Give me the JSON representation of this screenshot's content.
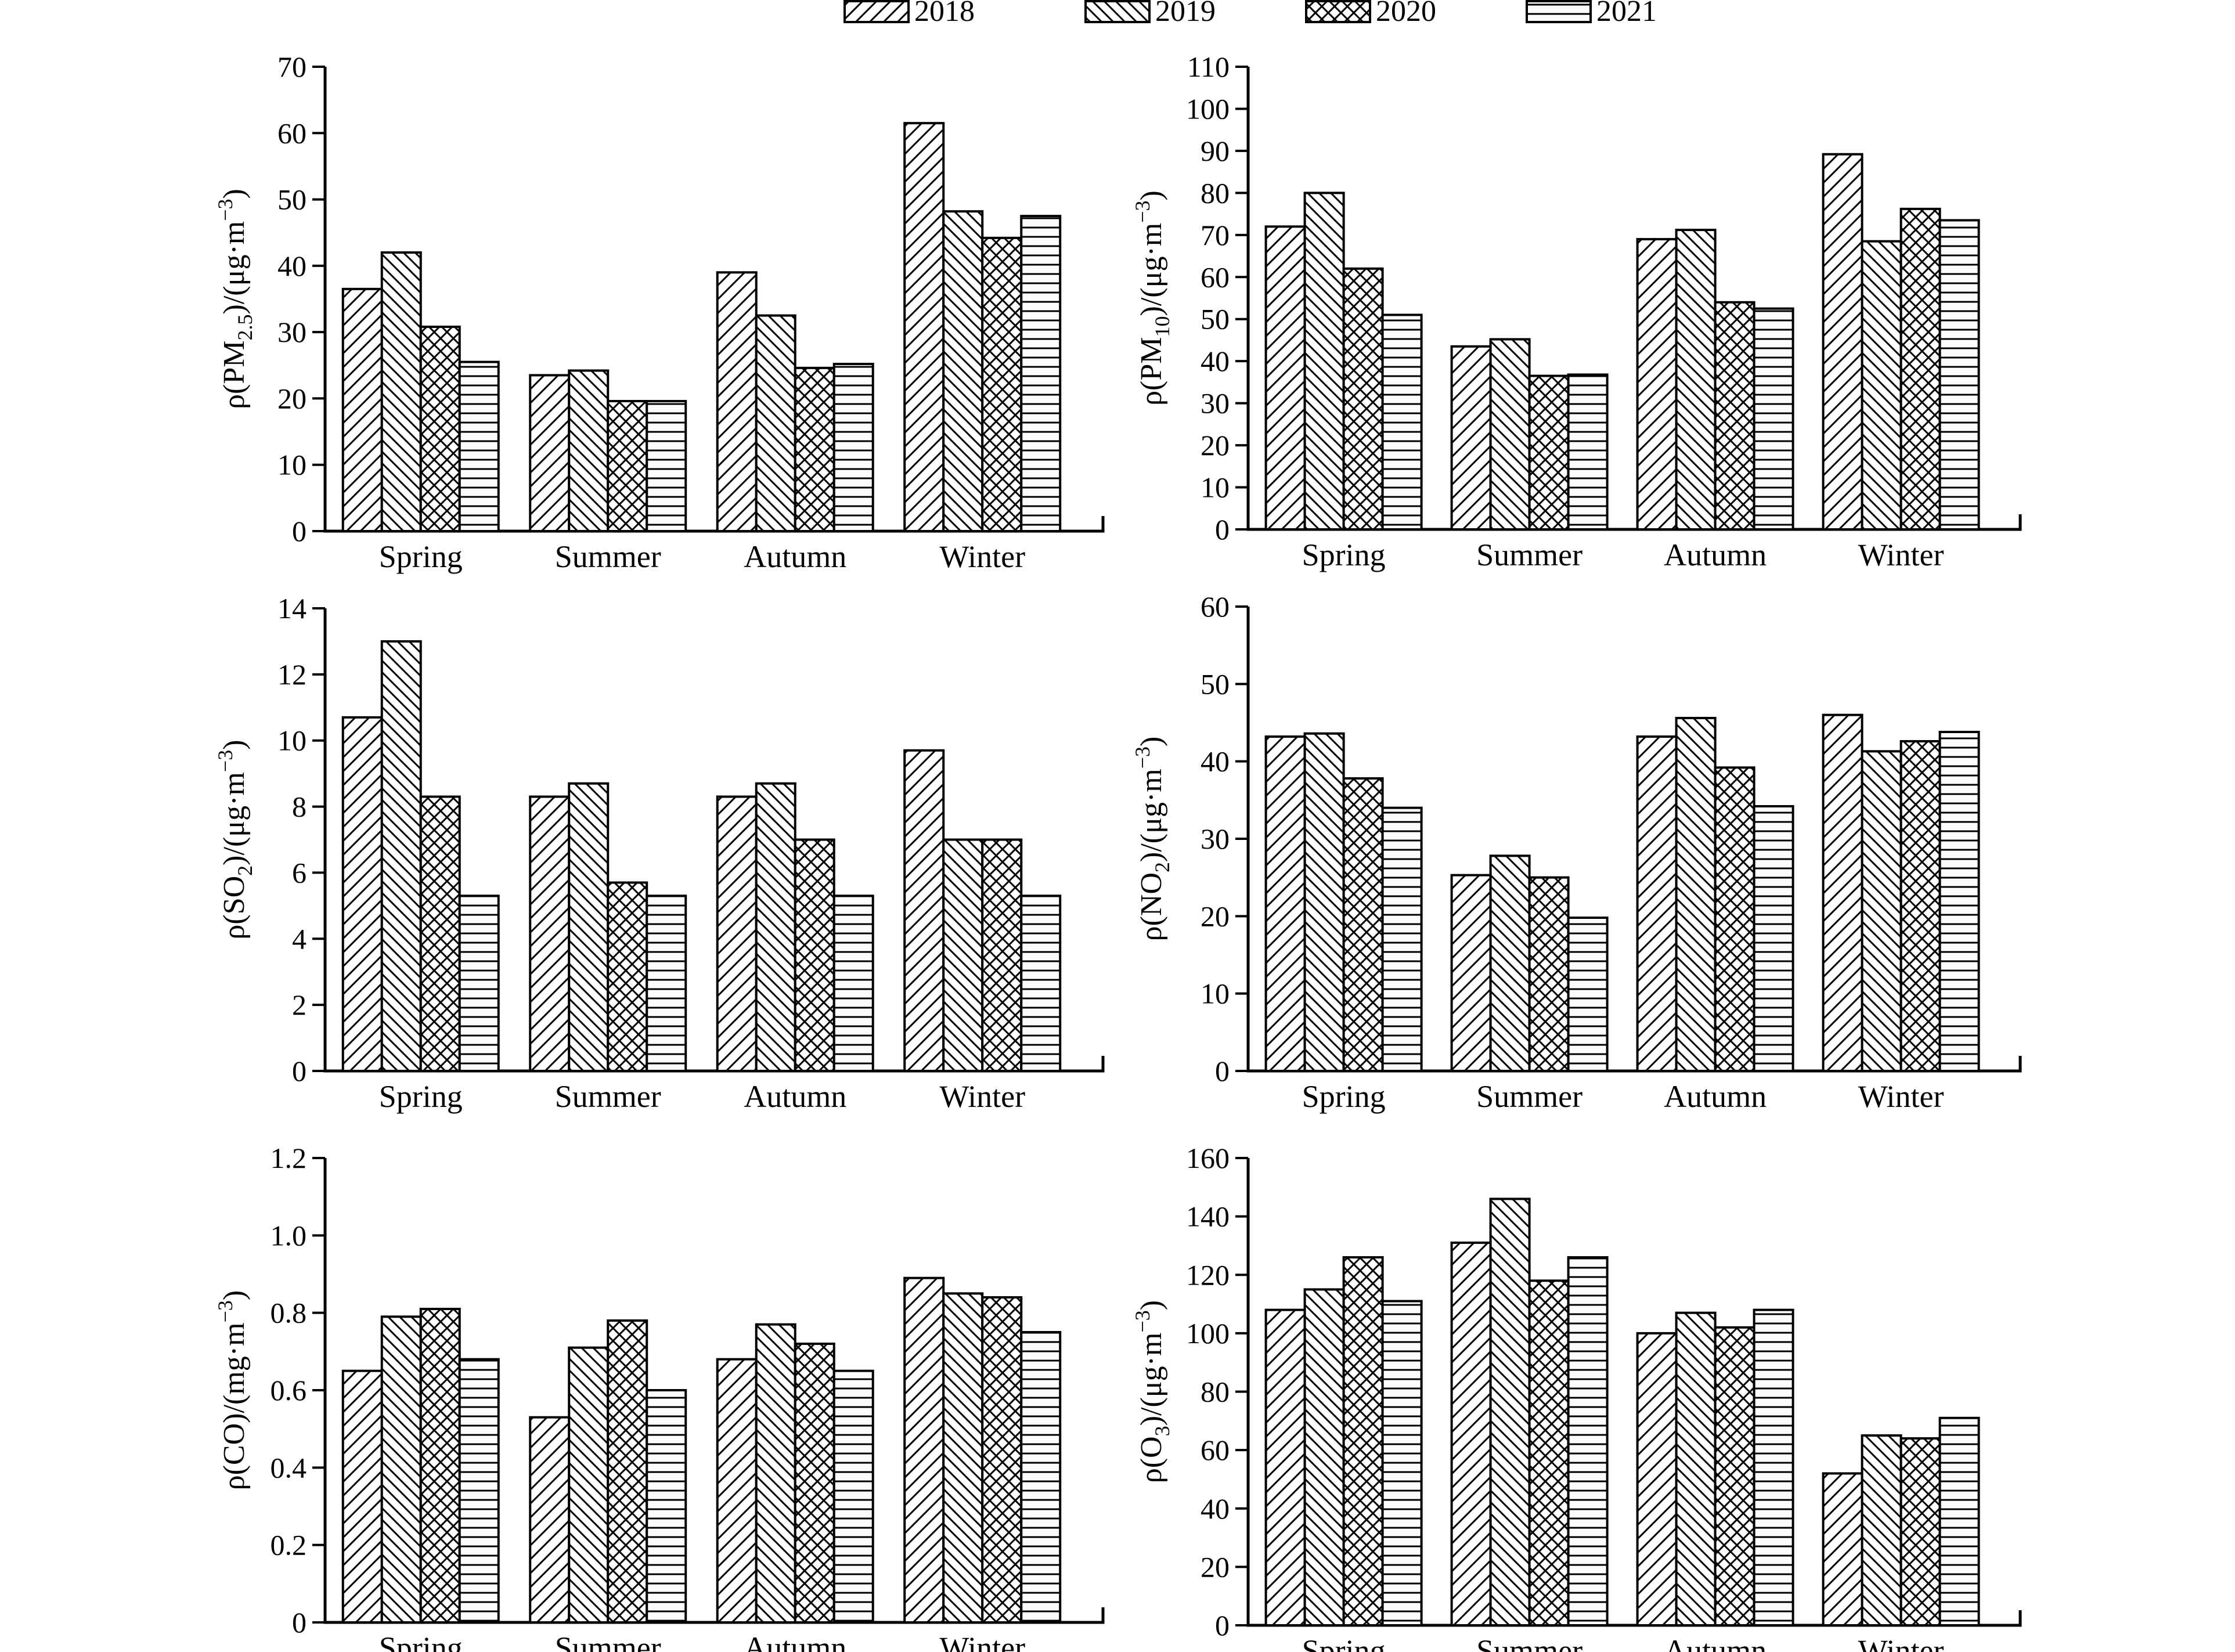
{
  "legend": {
    "entries": [
      {
        "year": "2018",
        "pattern": "diag-fwd"
      },
      {
        "year": "2019",
        "pattern": "diag-back"
      },
      {
        "year": "2020",
        "pattern": "cross"
      },
      {
        "year": "2021",
        "pattern": "horiz"
      }
    ]
  },
  "chart_data": [
    {
      "type": "bar",
      "id": "pm25",
      "ylabel": {
        "prefix": "ρ(PM",
        "sub": "2.5",
        "suffix": ")/(μg·m",
        "sup": "−3",
        "close": ")"
      },
      "ylim": [
        0,
        70
      ],
      "yticks": [
        0,
        10,
        20,
        30,
        40,
        50,
        60,
        70
      ],
      "categories": [
        "Spring",
        "Summer",
        "Autumn",
        "Winter"
      ],
      "series": [
        {
          "name": "2018",
          "values": [
            36.5,
            23.5,
            39,
            61.5
          ]
        },
        {
          "name": "2019",
          "values": [
            42,
            24.2,
            32.5,
            48.2
          ]
        },
        {
          "name": "2020",
          "values": [
            30.8,
            19.6,
            24.6,
            44.2
          ]
        },
        {
          "name": "2021",
          "values": [
            25.5,
            19.6,
            25.2,
            47.5
          ]
        }
      ]
    },
    {
      "type": "bar",
      "id": "pm10",
      "ylabel": {
        "prefix": "ρ(PM",
        "sub": "10",
        "suffix": ")/(μg·m",
        "sup": "−3",
        "close": ")"
      },
      "ylim": [
        0,
        110
      ],
      "yticks": [
        0,
        10,
        20,
        30,
        40,
        50,
        60,
        70,
        80,
        90,
        100,
        110
      ],
      "categories": [
        "Spring",
        "Summer",
        "Autumn",
        "Winter"
      ],
      "series": [
        {
          "name": "2018",
          "values": [
            72,
            43.5,
            69,
            89.2
          ]
        },
        {
          "name": "2019",
          "values": [
            80,
            45.2,
            71.2,
            68.5
          ]
        },
        {
          "name": "2020",
          "values": [
            62,
            36.5,
            54,
            76.2
          ]
        },
        {
          "name": "2021",
          "values": [
            51,
            36.8,
            52.5,
            73.5
          ]
        }
      ]
    },
    {
      "type": "bar",
      "id": "so2",
      "ylabel": {
        "prefix": "ρ(SO",
        "sub": "2",
        "suffix": ")/(μg·m",
        "sup": "−3",
        "close": ")"
      },
      "ylim": [
        0,
        14
      ],
      "yticks": [
        0,
        2,
        4,
        6,
        8,
        10,
        12,
        14
      ],
      "categories": [
        "Spring",
        "Summer",
        "Autumn",
        "Winter"
      ],
      "series": [
        {
          "name": "2018",
          "values": [
            10.7,
            8.3,
            8.3,
            9.7
          ]
        },
        {
          "name": "2019",
          "values": [
            13,
            8.7,
            8.7,
            7
          ]
        },
        {
          "name": "2020",
          "values": [
            8.3,
            5.7,
            7,
            7
          ]
        },
        {
          "name": "2021",
          "values": [
            5.3,
            5.3,
            5.3,
            5.3
          ]
        }
      ]
    },
    {
      "type": "bar",
      "id": "no2",
      "ylabel": {
        "prefix": "ρ(NO",
        "sub": "2",
        "suffix": ")/(μg·m",
        "sup": "−3",
        "close": ")"
      },
      "ylim": [
        0,
        60
      ],
      "yticks": [
        0,
        10,
        20,
        30,
        40,
        50,
        60
      ],
      "categories": [
        "Spring",
        "Summer",
        "Autumn",
        "Winter"
      ],
      "series": [
        {
          "name": "2018",
          "values": [
            43.2,
            25.3,
            43.2,
            46
          ]
        },
        {
          "name": "2019",
          "values": [
            43.6,
            27.8,
            45.6,
            41.3
          ]
        },
        {
          "name": "2020",
          "values": [
            37.8,
            25,
            39.2,
            42.6
          ]
        },
        {
          "name": "2021",
          "values": [
            34,
            19.8,
            34.2,
            43.8
          ]
        }
      ]
    },
    {
      "type": "bar",
      "id": "co",
      "ylabel": {
        "prefix": "ρ(CO)/(mg·m",
        "sub": "",
        "suffix": "",
        "sup": "−3",
        "close": ")"
      },
      "ylim": [
        0,
        1.2
      ],
      "yticks": [
        "0",
        "0.2",
        "0.4",
        "0.6",
        "0.8",
        "1.0",
        "1.2"
      ],
      "categories": [
        "Spring",
        "Summer",
        "Autumn",
        "Winter"
      ],
      "series": [
        {
          "name": "2018",
          "values": [
            0.65,
            0.53,
            0.68,
            0.89
          ]
        },
        {
          "name": "2019",
          "values": [
            0.79,
            0.71,
            0.77,
            0.85
          ]
        },
        {
          "name": "2020",
          "values": [
            0.81,
            0.78,
            0.72,
            0.84
          ]
        },
        {
          "name": "2021",
          "values": [
            0.68,
            0.6,
            0.65,
            0.75
          ]
        }
      ]
    },
    {
      "type": "bar",
      "id": "o3",
      "ylabel": {
        "prefix": "ρ(O",
        "sub": "3",
        "suffix": ")/(μg·m",
        "sup": "−3",
        "close": ")"
      },
      "ylim": [
        0,
        160
      ],
      "yticks": [
        0,
        20,
        40,
        60,
        80,
        100,
        120,
        140,
        160
      ],
      "categories": [
        "Spring",
        "Summer",
        "Autumn",
        "Winter"
      ],
      "series": [
        {
          "name": "2018",
          "values": [
            108,
            131,
            100,
            52
          ]
        },
        {
          "name": "2019",
          "values": [
            115,
            146,
            107,
            65
          ]
        },
        {
          "name": "2020",
          "values": [
            126,
            118,
            102,
            64
          ]
        },
        {
          "name": "2021",
          "values": [
            111,
            126,
            108,
            71
          ]
        }
      ]
    }
  ]
}
